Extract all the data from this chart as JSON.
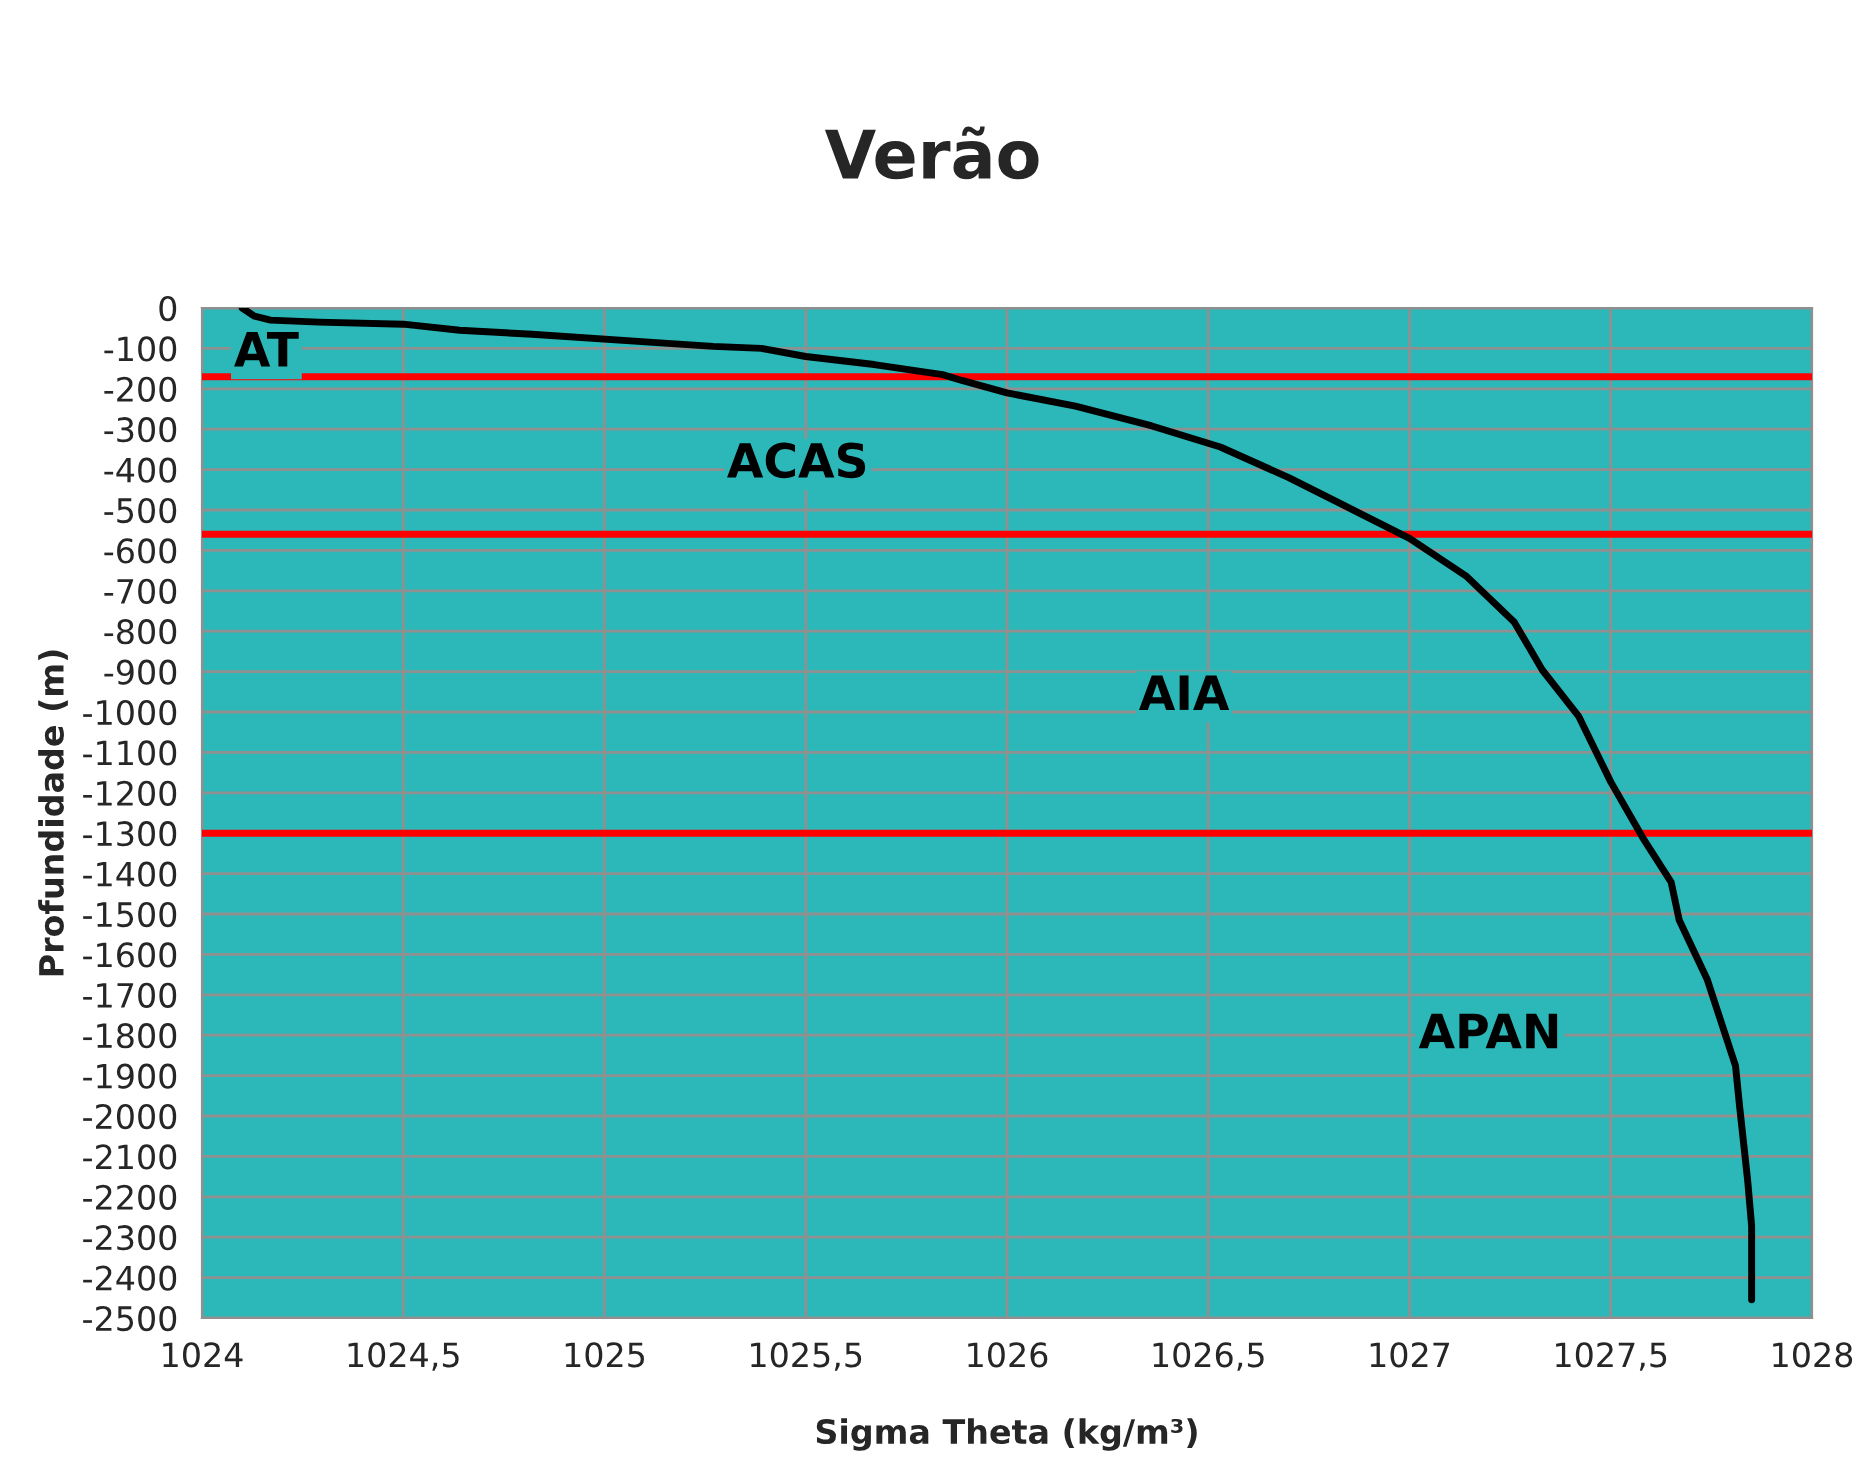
{
  "chart_data": {
    "type": "line",
    "title": "Verão",
    "xlabel": "Sigma Theta (kg/m³)",
    "ylabel": "Profundidade (m)",
    "series": [
      {
        "color": "#000000",
        "x": [
          1024.1,
          1024.13,
          1024.17,
          1024.29,
          1024.5,
          1024.64,
          1024.82,
          1025.12,
          1025.27,
          1025.39,
          1025.5,
          1025.67,
          1025.84,
          1025.89,
          1026.0,
          1026.17,
          1026.36,
          1026.53,
          1026.7,
          1026.82,
          1027.0,
          1027.14,
          1027.26,
          1027.33,
          1027.42,
          1027.5,
          1027.58,
          1027.65,
          1027.67,
          1027.74,
          1027.81,
          1027.82,
          1027.84,
          1027.85,
          1027.85
        ],
        "values": [
          0,
          -20,
          -30,
          -35,
          -40,
          -55,
          -65,
          -85,
          -95,
          -100,
          -120,
          -140,
          -165,
          -180,
          -210,
          -243,
          -292,
          -344,
          -420,
          -480,
          -570,
          -663,
          -777,
          -896,
          -1010,
          -1173,
          -1312,
          -1421,
          -1515,
          -1663,
          -1876,
          -1975,
          -2158,
          -2272,
          -2455
        ]
      }
    ],
    "xlim": [
      1024,
      1028
    ],
    "xticks": [
      1024,
      {
        "value": 1024.5,
        "label": "1024,5"
      },
      1025,
      {
        "value": 1025.5,
        "label": "1025,5"
      },
      1026,
      {
        "value": 1026.5,
        "label": "1026,5"
      },
      1027,
      {
        "value": 1027.5,
        "label": "1027,5"
      },
      1028
    ],
    "ylim": [
      -2500,
      0
    ],
    "yticks": [
      0,
      -100,
      -200,
      -300,
      -400,
      -500,
      -600,
      -700,
      -800,
      -900,
      -1000,
      -1100,
      -1200,
      -1300,
      -1400,
      -1500,
      -1600,
      -1700,
      -1800,
      -1900,
      -2000,
      -2100,
      -2200,
      -2300,
      -2400,
      -2500
    ],
    "grid": true,
    "marker": "none",
    "line_style": "solid",
    "ref_lines": [
      {
        "axis": "y",
        "value": -170,
        "color": "#ff0000"
      },
      {
        "axis": "y",
        "value": -560,
        "color": "#ff0000"
      },
      {
        "axis": "y",
        "value": -1300,
        "color": "#ff0000"
      }
    ],
    "annotations": [
      "AT",
      "ACAS",
      "AIA",
      "APAN"
    ]
  }
}
